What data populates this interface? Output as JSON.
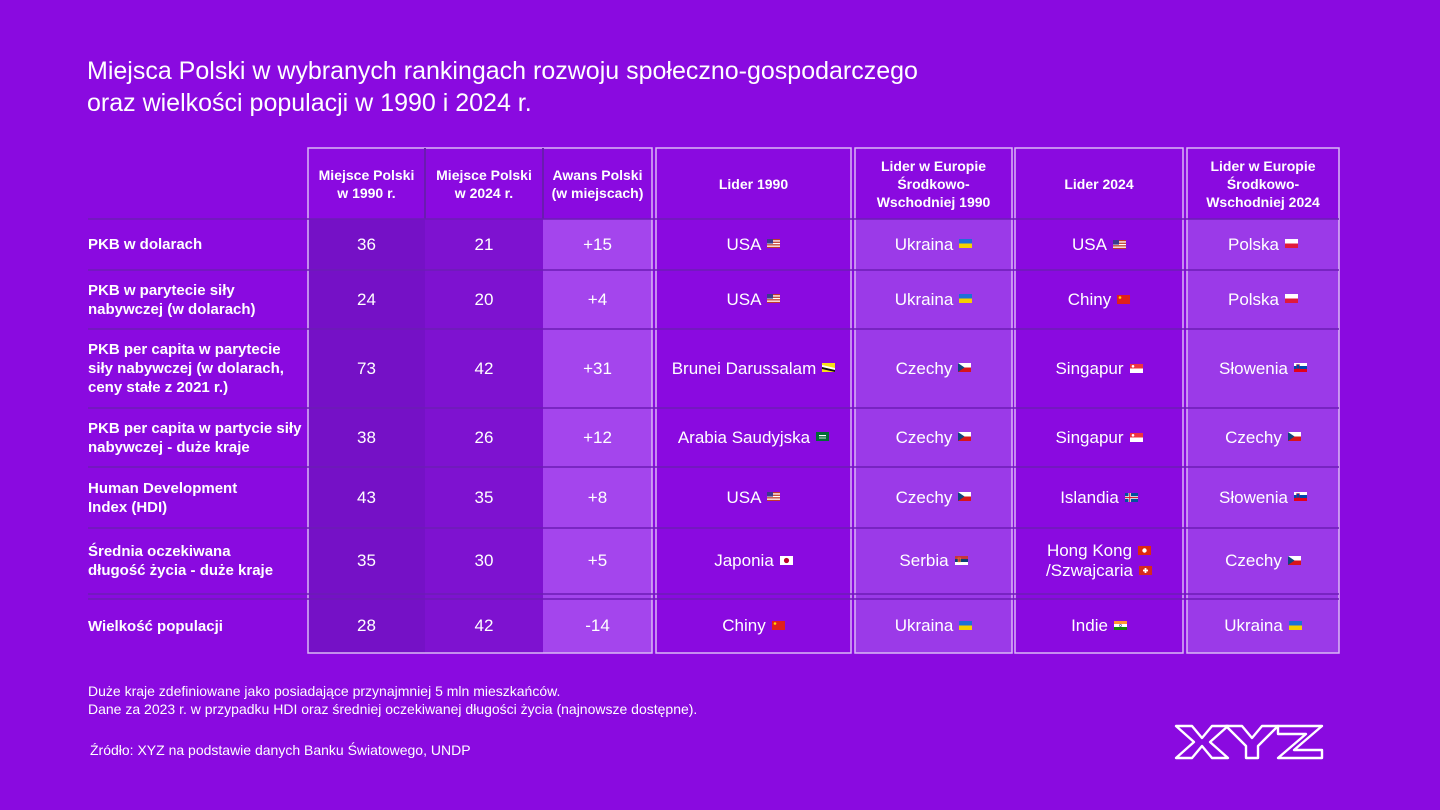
{
  "title": {
    "line1": "Miejsca Polski w wybranych rankingach rozwoju społeczno-gospodarczego",
    "line2": "oraz wielkości populacji w 1990 i 2024 r."
  },
  "headers": {
    "col1": [
      "Miejsce Polski",
      "w 1990 r."
    ],
    "col2": [
      "Miejsce Polski",
      "w 2024 r."
    ],
    "col3": [
      "Awans Polski",
      "(w miejscach)"
    ],
    "col4": [
      "Lider 1990"
    ],
    "col5": [
      "Lider w Europie",
      "Środkowo-",
      "Wschodniej 1990"
    ],
    "col6": [
      "Lider 2024"
    ],
    "col7": [
      "Lider w Europie",
      "Środkowo-",
      "Wschodniej 2024"
    ]
  },
  "rows": [
    {
      "label": [
        "PKB w dolarach"
      ],
      "p1990": "36",
      "p2024": "21",
      "awans": "+15",
      "lider1990": "USA",
      "lider1990_flag": "us",
      "cee1990": "Ukraina",
      "cee1990_flag": "ua",
      "lider2024": [
        "USA"
      ],
      "lider2024_flag": [
        "us"
      ],
      "cee2024": "Polska",
      "cee2024_flag": "pl"
    },
    {
      "label": [
        "PKB w parytecie siły",
        "nabywczej (w dolarach)"
      ],
      "p1990": "24",
      "p2024": "20",
      "awans": "+4",
      "lider1990": "USA",
      "lider1990_flag": "us",
      "cee1990": "Ukraina",
      "cee1990_flag": "ua",
      "lider2024": [
        "Chiny"
      ],
      "lider2024_flag": [
        "cn"
      ],
      "cee2024": "Polska",
      "cee2024_flag": "pl"
    },
    {
      "label": [
        "PKB per capita w parytecie",
        "siły nabywczej (w dolarach,",
        "ceny stałe z 2021 r.)"
      ],
      "p1990": "73",
      "p2024": "42",
      "awans": "+31",
      "lider1990": "Brunei Darussalam",
      "lider1990_flag": "bn",
      "cee1990": "Czechy",
      "cee1990_flag": "cz",
      "lider2024": [
        "Singapur"
      ],
      "lider2024_flag": [
        "sg"
      ],
      "cee2024": "Słowenia",
      "cee2024_flag": "si"
    },
    {
      "label": [
        "PKB per capita w partycie siły",
        "nabywczej - duże kraje"
      ],
      "p1990": "38",
      "p2024": "26",
      "awans": "+12",
      "lider1990": "Arabia Saudyjska",
      "lider1990_flag": "sa",
      "cee1990": "Czechy",
      "cee1990_flag": "cz",
      "lider2024": [
        "Singapur"
      ],
      "lider2024_flag": [
        "sg"
      ],
      "cee2024": "Czechy",
      "cee2024_flag": "cz"
    },
    {
      "label": [
        "Human Development",
        "Index (HDI)"
      ],
      "p1990": "43",
      "p2024": "35",
      "awans": "+8",
      "lider1990": "USA",
      "lider1990_flag": "us",
      "cee1990": "Czechy",
      "cee1990_flag": "cz",
      "lider2024": [
        "Islandia"
      ],
      "lider2024_flag": [
        "is"
      ],
      "cee2024": "Słowenia",
      "cee2024_flag": "si"
    },
    {
      "label": [
        "Średnia oczekiwana",
        "długość życia - duże kraje"
      ],
      "p1990": "35",
      "p2024": "30",
      "awans": "+5",
      "lider1990": "Japonia",
      "lider1990_flag": "jp",
      "cee1990": "Serbia",
      "cee1990_flag": "rs",
      "lider2024": [
        "Hong Kong",
        "/Szwajcaria"
      ],
      "lider2024_flag": [
        "hk",
        "ch"
      ],
      "cee2024": "Czechy",
      "cee2024_flag": "cz"
    },
    {
      "label": [
        "Wielkość populacji"
      ],
      "p1990": "28",
      "p2024": "42",
      "awans": "-14",
      "lider1990": "Chiny",
      "lider1990_flag": "cn",
      "cee1990": "Ukraina",
      "cee1990_flag": "ua",
      "lider2024": [
        "Indie"
      ],
      "lider2024_flag": [
        "in"
      ],
      "cee2024": "Ukraina",
      "cee2024_flag": "ua"
    }
  ],
  "notes": [
    "Duże kraje zdefiniowane jako posiadające przynajmniej 5 mln mieszkańców.",
    "Dane za 2023 r. w przypadku HDI oraz średniej oczekiwanej długości życia (najnowsze dostępne)."
  ],
  "source": "Źródło: XYZ na podstawie danych Banku Światowego, UNDP",
  "logo": "XYZ",
  "colors": {
    "background": "#8a0ae0",
    "col_dark": "#7310c4",
    "col_mid": "#7d0fd2",
    "col_light": "#a344ec",
    "col_lighter": "#9b3ae8",
    "line": "#b27ae6"
  }
}
